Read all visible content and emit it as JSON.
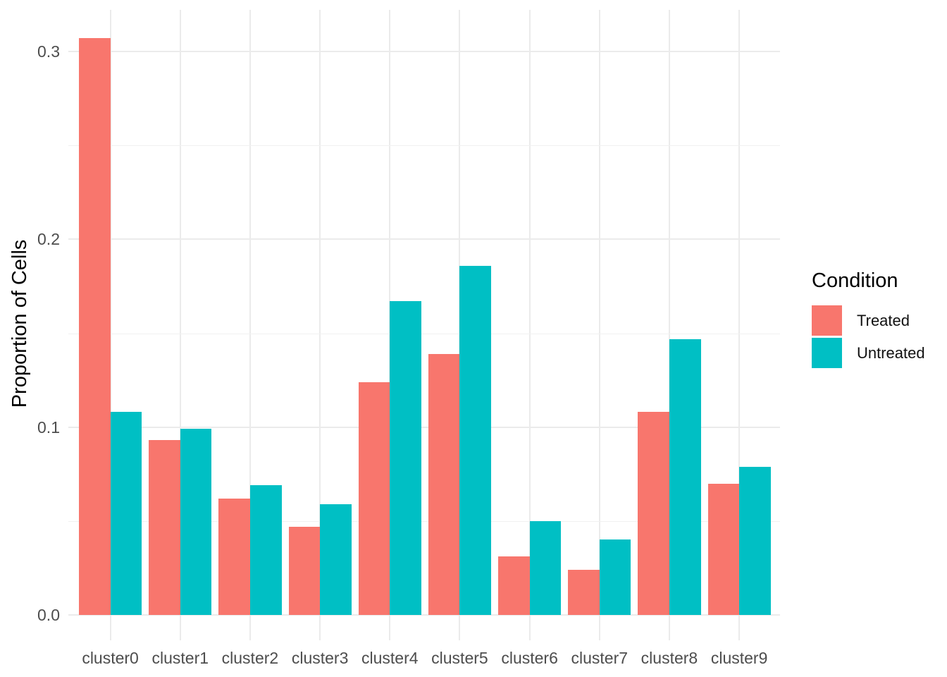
{
  "chart_data": {
    "type": "bar",
    "bar_mode": "dodged",
    "title": "",
    "xlabel": "",
    "ylabel": "Proportion of Cells",
    "categories": [
      "cluster0",
      "cluster1",
      "cluster2",
      "cluster3",
      "cluster4",
      "cluster5",
      "cluster6",
      "cluster7",
      "cluster8",
      "cluster9"
    ],
    "series": [
      {
        "name": "Treated",
        "color": "#F8766D",
        "values": [
          0.307,
          0.093,
          0.062,
          0.047,
          0.124,
          0.139,
          0.031,
          0.024,
          0.108,
          0.07
        ]
      },
      {
        "name": "Untreated",
        "color": "#00BFC4",
        "values": [
          0.108,
          0.099,
          0.069,
          0.059,
          0.167,
          0.186,
          0.05,
          0.04,
          0.147,
          0.079
        ]
      }
    ],
    "yaxis": {
      "range": [
        0,
        0.32
      ],
      "ticks": [
        0,
        0.1,
        0.2,
        0.3
      ],
      "tick_labels": [
        "0.0",
        "0.1",
        "0.2",
        "0.3"
      ],
      "minor_ticks": [
        0.05,
        0.15,
        0.25
      ]
    },
    "grid": "major and minor horizontal, major vertical",
    "legend_title": "Condition",
    "legend_position": "right"
  }
}
